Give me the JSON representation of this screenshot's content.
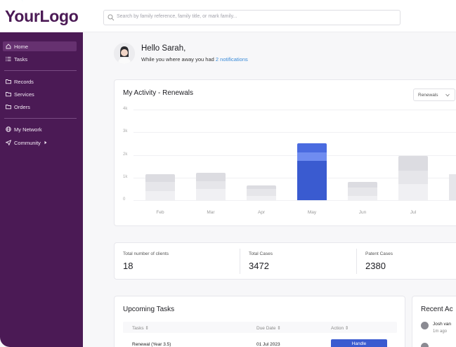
{
  "header": {
    "logo": "YourLogo",
    "search_placeholder": "Search by family reference, family title, or mark family..."
  },
  "sidebar": {
    "items": [
      {
        "label": "Home",
        "icon": "home-icon"
      },
      {
        "label": "Tasks",
        "icon": "list-icon"
      },
      {
        "label": "Records",
        "icon": "folder-icon"
      },
      {
        "label": "Services",
        "icon": "folder-icon"
      },
      {
        "label": "Orders",
        "icon": "folder-icon"
      },
      {
        "label": "My Network",
        "icon": "globe-icon"
      },
      {
        "label": "Community",
        "icon": "send-icon"
      }
    ]
  },
  "greeting": {
    "title": "Hello Sarah,",
    "sub_prefix": "While you where away you had",
    "notifications": "2 notifications"
  },
  "activity": {
    "title": "My Activity - Renewals",
    "dropdown": "Renewals"
  },
  "chart_data": {
    "type": "bar",
    "title": "My Activity - Renewals",
    "categories": [
      "Feb",
      "Mar",
      "Apr",
      "May",
      "Jun",
      "Jul"
    ],
    "y_ticks": [
      "4k",
      "3k",
      "2k",
      "1k",
      "0"
    ],
    "ylim": [
      0,
      4000
    ],
    "stacked": true,
    "highlight": "May",
    "series": [
      {
        "values": [
          400,
          500,
          200,
          1750,
          200,
          700
        ]
      },
      {
        "values": [
          400,
          350,
          300,
          350,
          350,
          600
        ]
      },
      {
        "values": [
          350,
          350,
          150,
          400,
          250,
          650
        ]
      }
    ],
    "colors": {
      "segments": [
        "#f0f0f3",
        "#e6e6ea",
        "#dcdce1"
      ],
      "highlight": [
        "#3a5bd0",
        "#6f8cf0",
        "#4a6be0"
      ]
    }
  },
  "stats": [
    {
      "label": "Total number of clients",
      "value": "18"
    },
    {
      "label": "Total Cases",
      "value": "3472"
    },
    {
      "label": "Patent Cases",
      "value": "2380"
    }
  ],
  "tasks": {
    "title": "Upcoming Tasks",
    "columns": [
      "Tasks",
      "Due Date",
      "Action"
    ],
    "rows": [
      {
        "task": "Renewal (Year 3.5)",
        "due": "01 Jul 2023",
        "action": "Handle"
      }
    ]
  },
  "recent": {
    "title": "Recent Ac",
    "items": [
      {
        "name": "Josh van",
        "time": "1m ago"
      }
    ]
  }
}
